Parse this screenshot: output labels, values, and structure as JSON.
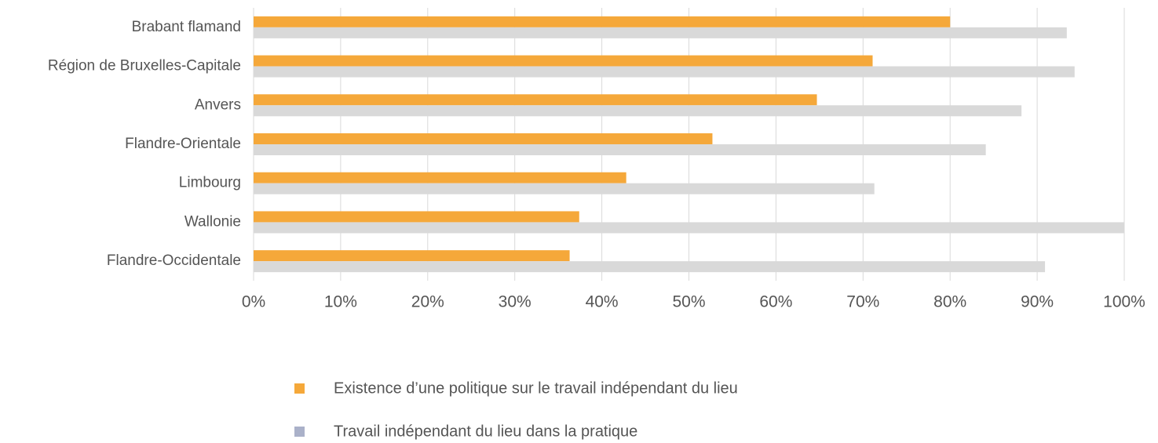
{
  "chart_data": {
    "type": "hbar",
    "categories": [
      "Brabant flamand",
      "Région de Bruxelles-Capitale",
      "Anvers",
      "Flandre-Orientale",
      "Limbourg",
      "Wallonie",
      "Flandre-Occidentale"
    ],
    "series": [
      {
        "name": "Existence d’une politique sur le travail indépendant du lieu",
        "color": "#f5a83a",
        "legend_color": "#f5a83a",
        "values": [
          80.0,
          71.1,
          64.7,
          52.7,
          42.8,
          37.4,
          36.3
        ]
      },
      {
        "name": "Travail indépendant du lieu dans la pratique",
        "color": "#d9d9d9",
        "legend_color": "#aab1c9",
        "values": [
          93.4,
          94.3,
          88.2,
          84.1,
          71.3,
          100,
          90.9
        ]
      }
    ],
    "xlim": [
      0,
      100
    ],
    "xticks": [
      {
        "value": 0,
        "label": "0%"
      },
      {
        "value": 10,
        "label": "10%"
      },
      {
        "value": 20,
        "label": "20%"
      },
      {
        "value": 30,
        "label": "30%"
      },
      {
        "value": 40,
        "label": "40%"
      },
      {
        "value": 50,
        "label": "50%"
      },
      {
        "value": 60,
        "label": "60%"
      },
      {
        "value": 70,
        "label": "70%"
      },
      {
        "value": 80,
        "label": "80%"
      },
      {
        "value": 90,
        "label": "90%"
      },
      {
        "value": 100,
        "label": "100%"
      }
    ],
    "grid": true,
    "legend": "bottom"
  }
}
